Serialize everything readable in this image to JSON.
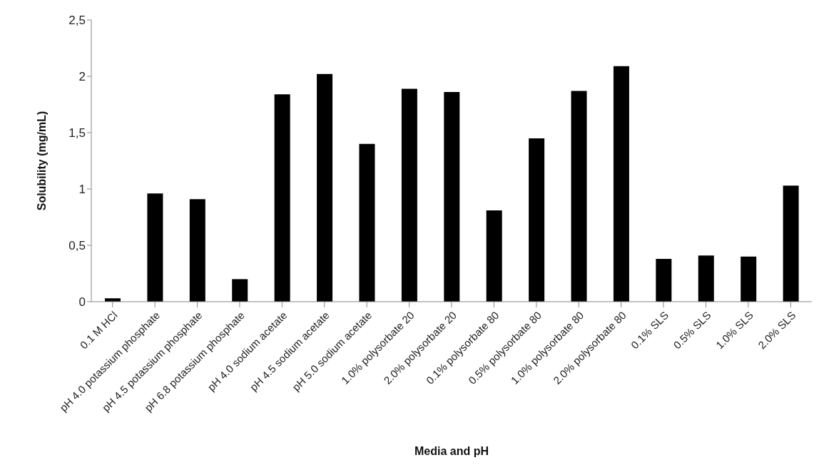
{
  "chart_data": {
    "type": "bar",
    "xlabel": "Media and pH",
    "ylabel": "Solubility (mg/mL)",
    "categories": [
      "0.1 M HCl",
      "pH 4.0 potassium phosphate",
      "pH 4.5 potassium phosphate",
      "pH 6.8 potassium phosphate",
      "pH 4.0 sodium acetate",
      "pH 4.5 sodium acetate",
      "pH 5.0 sodium acetate",
      "1.0% polysorbate 20",
      "2.0% polysorbate 20",
      "0.1% polysorbate 80",
      "0.5% polysorbate 80",
      "1.0% polysorbate 80",
      "2.0% polysorbate 80",
      "0.1% SLS",
      "0.5% SLS",
      "1.0% SLS",
      "2.0% SLS"
    ],
    "values": [
      0.03,
      0.96,
      0.91,
      0.2,
      1.84,
      2.02,
      1.4,
      1.89,
      1.86,
      0.81,
      1.45,
      1.87,
      2.09,
      0.38,
      0.41,
      0.4,
      1.03
    ],
    "color": "#000000",
    "ylim": [
      0,
      2.5
    ],
    "yticks": [
      0,
      {
        "value": 0.5,
        "label": "0,5"
      },
      1,
      {
        "value": 1.5,
        "label": "1,5"
      },
      2,
      {
        "value": 2.5,
        "label": "2,5"
      }
    ],
    "grid": false,
    "legend": false
  }
}
